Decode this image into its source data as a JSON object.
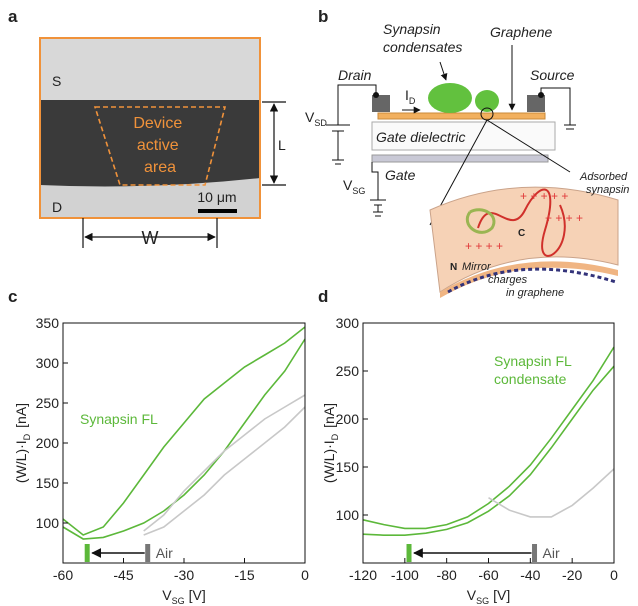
{
  "panel_letters": [
    "a",
    "b",
    "c",
    "d"
  ],
  "panel_a": {
    "source": "S",
    "drain": "D",
    "active_area": [
      "Device",
      "active",
      "area"
    ],
    "scale_bar": "10 μm",
    "length": "L",
    "width": "W"
  },
  "panel_b": {
    "condensates": [
      "Synapsin",
      "condensates"
    ],
    "graphene": "Graphene",
    "drain": "Drain",
    "source": "Source",
    "v_sd": [
      "V",
      "SD"
    ],
    "i_d": [
      "I",
      "D"
    ],
    "gate_dielectric": "Gate dielectric",
    "gate": "Gate",
    "v_sg": [
      "V",
      "SG"
    ],
    "adsorbed": [
      "Adsorbed",
      "synapsin"
    ],
    "n_term": "N",
    "c_term": "C",
    "mirror": [
      "Mirror",
      "charges",
      "in graphene"
    ]
  },
  "chart_data": [
    {
      "type": "line",
      "x_label": [
        "V",
        "SG",
        "[V]"
      ],
      "y_label": [
        "(W/L)·I",
        "D",
        "[nA]"
      ],
      "annotation": [
        "Synapsin FL"
      ],
      "x": [
        -60,
        -55,
        -50,
        -45,
        -40,
        -35,
        -30,
        -25,
        -20,
        -15,
        -10,
        -5,
        0
      ],
      "series": [
        {
          "color": "#5cb83a",
          "values": [
            105,
            85,
            95,
            125,
            160,
            195,
            225,
            255,
            275,
            295,
            310,
            325,
            345
          ]
        },
        {
          "color": "#5cb83a",
          "values": [
            95,
            80,
            82,
            90,
            100,
            115,
            135,
            160,
            190,
            225,
            260,
            290,
            330
          ]
        },
        {
          "color": "#c8c8c8",
          "values": [
            null,
            null,
            null,
            null,
            90,
            110,
            140,
            165,
            190,
            210,
            230,
            245,
            260
          ]
        },
        {
          "color": "#c8c8c8",
          "values": [
            null,
            null,
            null,
            null,
            85,
            95,
            115,
            135,
            160,
            180,
            200,
            220,
            245
          ]
        }
      ],
      "arrow": {
        "from": -39,
        "to": -54,
        "label": "Air"
      },
      "xlim": [
        -60,
        0
      ],
      "ylim": [
        50,
        350
      ],
      "xticks": [
        -60,
        -45,
        -30,
        -15,
        0
      ],
      "yticks": [
        100,
        150,
        200,
        250,
        300,
        350
      ]
    },
    {
      "type": "line",
      "x_label": [
        "V",
        "SG",
        "[V]"
      ],
      "y_label": [
        "(W/L)·I",
        "D",
        "[nA]"
      ],
      "annotation": [
        "Synapsin FL",
        "condensate"
      ],
      "x": [
        -120,
        -110,
        -100,
        -90,
        -80,
        -70,
        -60,
        -50,
        -40,
        -30,
        -20,
        -10,
        0
      ],
      "series": [
        {
          "color": "#5cb83a",
          "values": [
            95,
            90,
            86,
            86,
            90,
            98,
            112,
            130,
            152,
            180,
            210,
            240,
            275
          ]
        },
        {
          "color": "#5cb83a",
          "values": [
            80,
            79,
            79,
            81,
            85,
            92,
            104,
            120,
            142,
            170,
            200,
            230,
            255
          ]
        },
        {
          "color": "#c8c8c8",
          "values": [
            null,
            null,
            null,
            null,
            null,
            null,
            118,
            105,
            98,
            98,
            110,
            128,
            148
          ]
        }
      ],
      "arrow": {
        "from": -38,
        "to": -98,
        "label": "Air"
      },
      "xlim": [
        -120,
        0
      ],
      "ylim": [
        50,
        300
      ],
      "xticks": [
        -120,
        -100,
        -80,
        -60,
        -40,
        -20,
        0
      ],
      "yticks": [
        100,
        150,
        200,
        250,
        300
      ]
    }
  ]
}
